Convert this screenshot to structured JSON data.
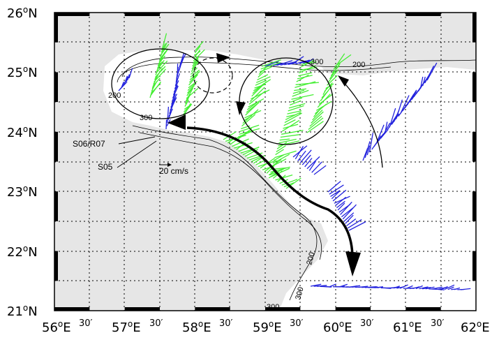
{
  "axes": {
    "lon_ticks": [
      {
        "deg": "56",
        "hemi": "E"
      },
      {
        "deg": "57",
        "hemi": "E"
      },
      {
        "deg": "58",
        "hemi": "E"
      },
      {
        "deg": "59",
        "hemi": "E"
      },
      {
        "deg": "60",
        "hemi": "E"
      },
      {
        "deg": "61",
        "hemi": "E"
      },
      {
        "deg": "62",
        "hemi": "E"
      }
    ],
    "lat_ticks": [
      {
        "deg": "21",
        "hemi": "N"
      },
      {
        "deg": "22",
        "hemi": "N"
      },
      {
        "deg": "23",
        "hemi": "N"
      },
      {
        "deg": "24",
        "hemi": "N"
      },
      {
        "deg": "25",
        "hemi": "N"
      },
      {
        "deg": "26",
        "hemi": "N"
      }
    ],
    "minute_label": "30′",
    "lon_range": [
      56,
      62
    ],
    "lat_range": [
      21,
      26
    ],
    "grid": "dotted"
  },
  "contour_labels": [
    "300",
    "200",
    "200",
    "300",
    "200",
    "300",
    "300"
  ],
  "annotations": {
    "section_a": "S06/R07",
    "section_b": "S05",
    "scale": "20 cm/s"
  },
  "colors": {
    "land": "#e6e6e6",
    "sea": "#ffffff",
    "vectors_a": "#2222dd",
    "vectors_b": "#44ee33",
    "circulation": "#000000"
  }
}
